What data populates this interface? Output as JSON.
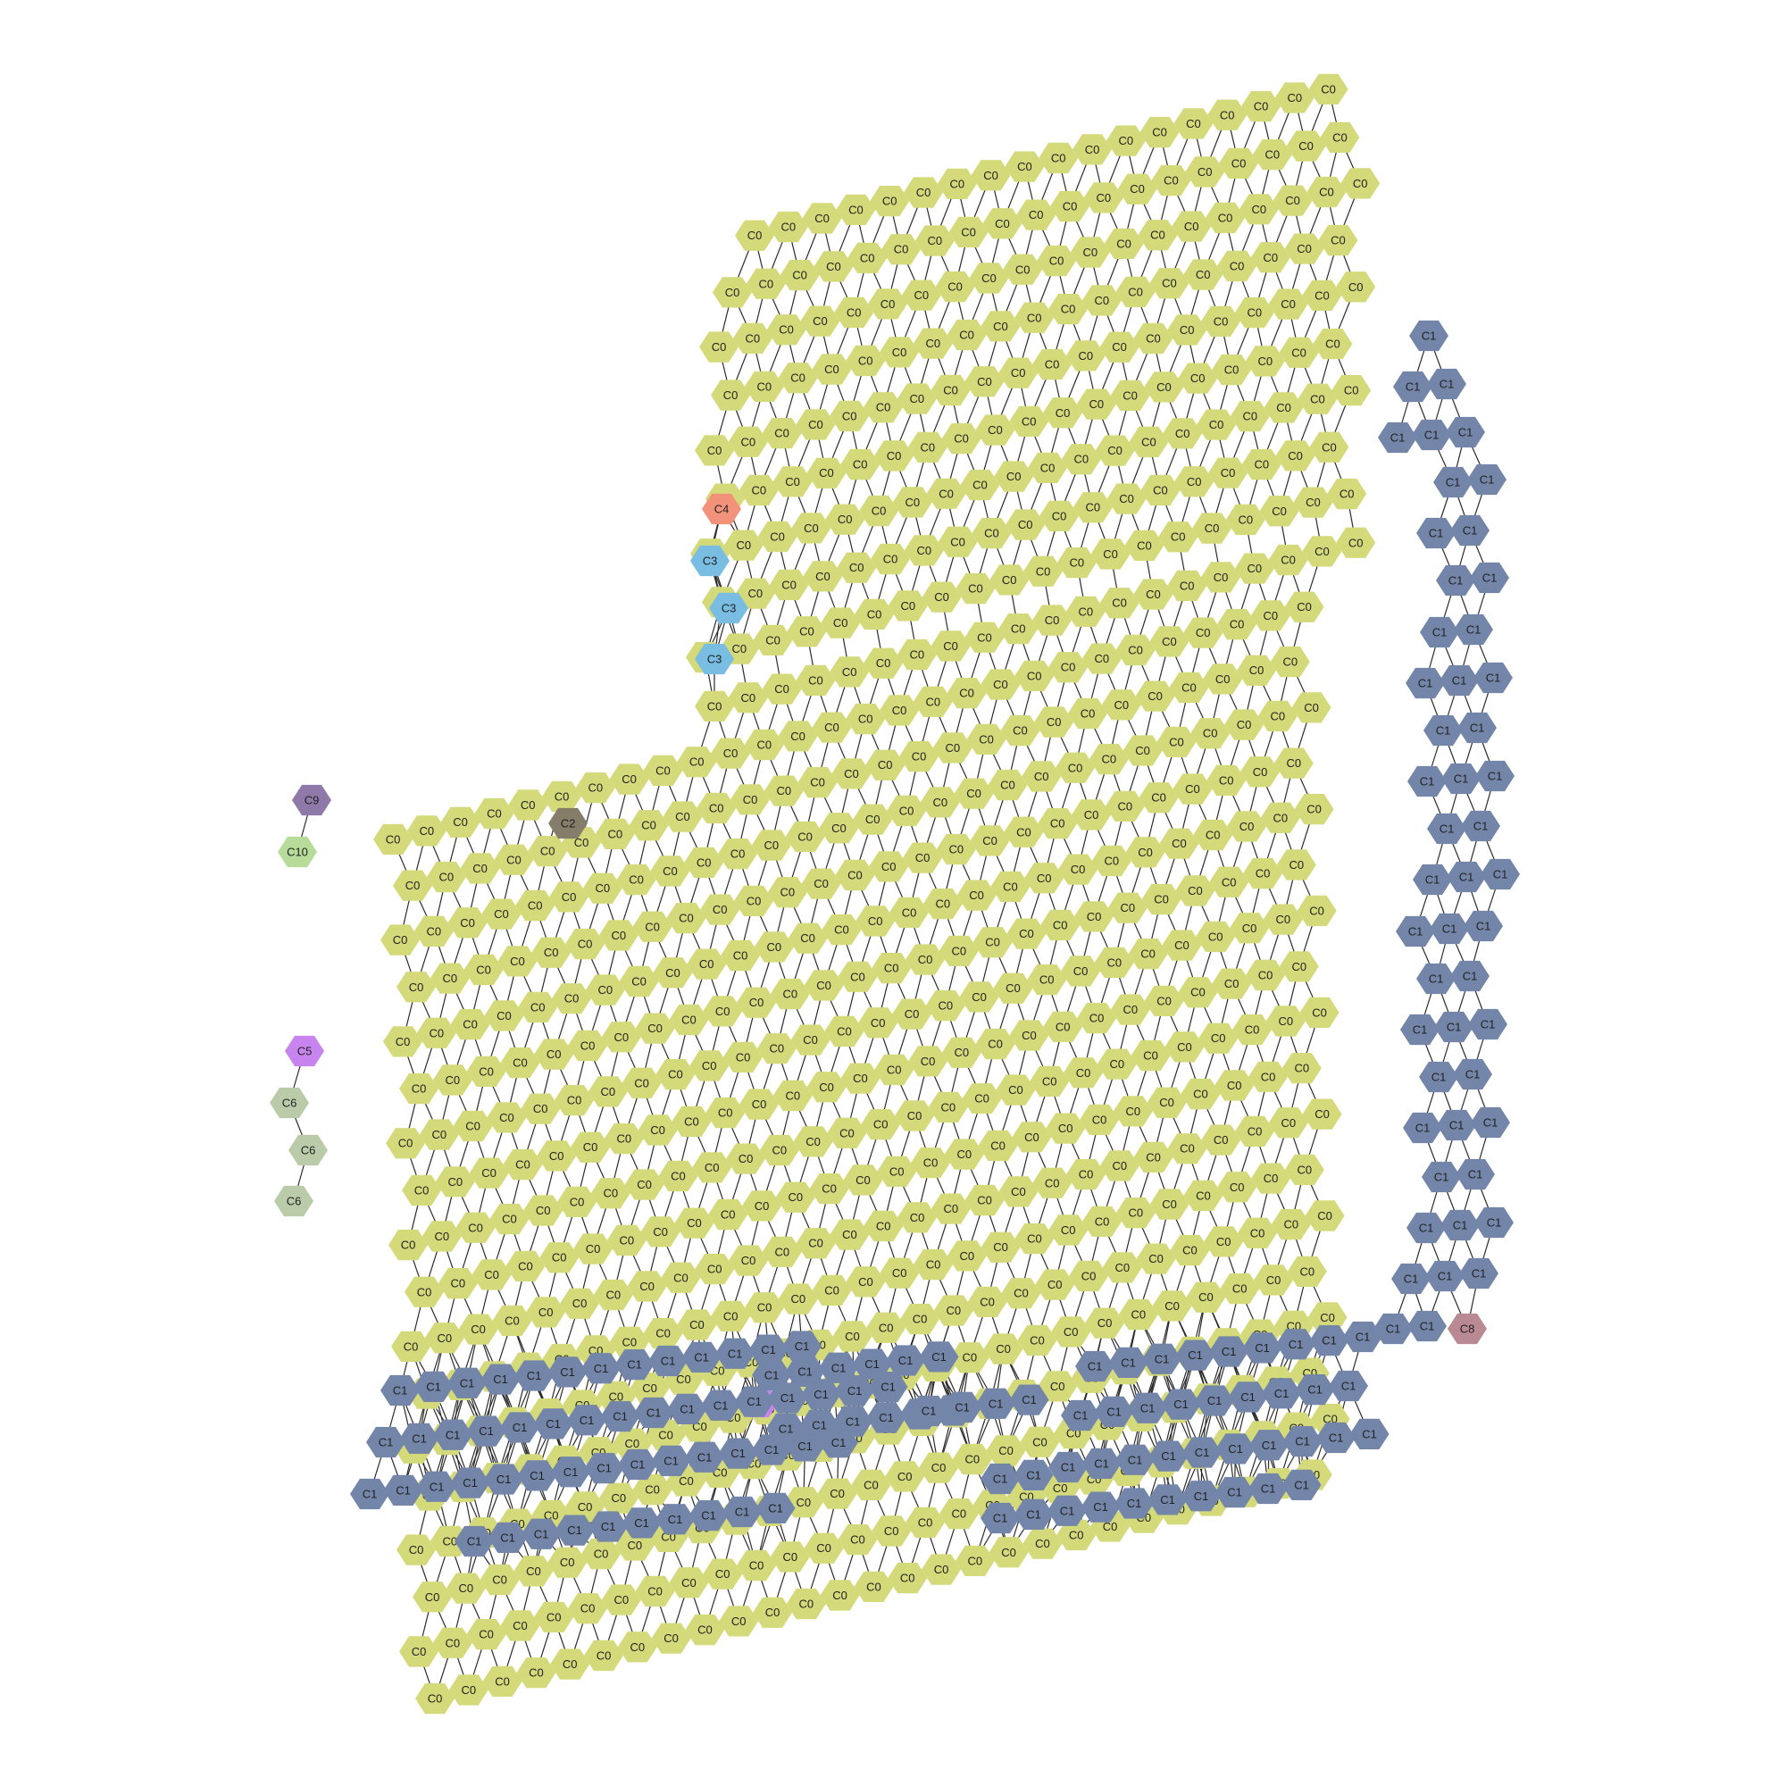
{
  "figure": {
    "labels": {
      "C0": "C0",
      "C1": "C1",
      "C2": "C2",
      "C3": "C3",
      "C4": "C4",
      "C5": "C5",
      "C6": "C6",
      "C7": "C7",
      "C8": "C8",
      "C9": "C9",
      "C10": "C10"
    },
    "colors": {
      "C0": "#d4d97a",
      "C1": "#7386a9",
      "C2": "#857c6a",
      "C3": "#79bde3",
      "C4": "#f3927a",
      "C5": "#c784ee",
      "C6": "#b9cba8",
      "C7": "#c784ee",
      "C8": "#b98994",
      "C9": "#8e79a9",
      "C10": "#b7db98"
    }
  }
}
